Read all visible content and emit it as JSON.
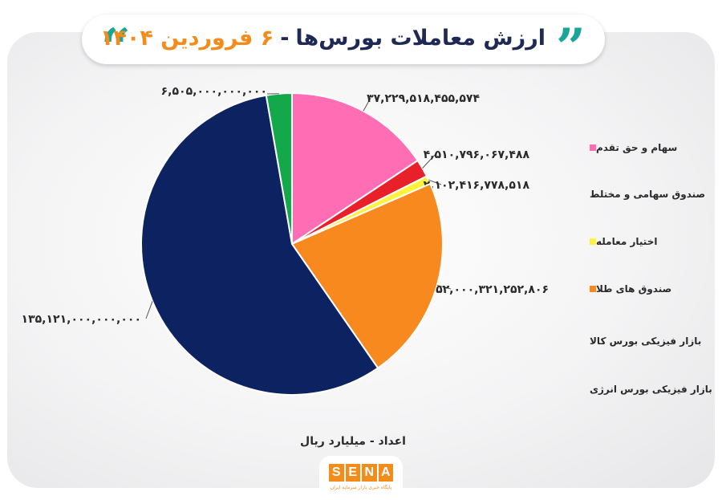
{
  "header": {
    "title_main": "ارزش معاملات بورس‌ها",
    "separator": "-",
    "title_date": "۶ فروردین ۱۴۰۴",
    "quote_open": "“",
    "quote_close": "”"
  },
  "chart_data": {
    "type": "pie",
    "title": "ارزش معاملات بورس‌ها - ۶ فروردین ۱۴۰۴",
    "unit_note": "اعداد - میلیارد ریال",
    "legend_position": "right",
    "slices": [
      {
        "name": "سهام و حق تقدم",
        "value": 37229518455574,
        "label": "۳۷,۲۲۹,۵۱۸,۴۵۵,۵۷۴",
        "color": "#ff6eb4"
      },
      {
        "name": "صندوق سهامی و مختلط",
        "value": 4510796067488,
        "label": "۴,۵۱۰,۷۹۶,۰۶۷,۴۸۸",
        "color": "#e8202a"
      },
      {
        "name": "اختیار معامله",
        "value": 2102416778518,
        "label": "۲,۱۰۲,۴۱۶,۷۷۸,۵۱۸",
        "color": "#fff23a"
      },
      {
        "name": "صندوق های طلا",
        "value": 52000321252806,
        "label": "۵۲,۰۰۰,۳۲۱,۲۵۲,۸۰۶",
        "color": "#f7891e"
      },
      {
        "name": "بازار فیزیکی بورس کالا",
        "value": 135121000000000,
        "label": "۱۳۵,۱۲۱,۰۰۰,۰۰۰,۰۰۰",
        "color": "#0d2260"
      },
      {
        "name": "بازار فیزیکی بورس انرژی",
        "value": 6505000000000,
        "label": "۶,۵۰۵,۰۰۰,۰۰۰,۰۰۰",
        "color": "#13a84a"
      }
    ]
  },
  "footer": {
    "logo_letters": [
      "S",
      "E",
      "N",
      "A"
    ],
    "logo_caption": "پایگاه خبری بازار سرمایه ایران"
  }
}
